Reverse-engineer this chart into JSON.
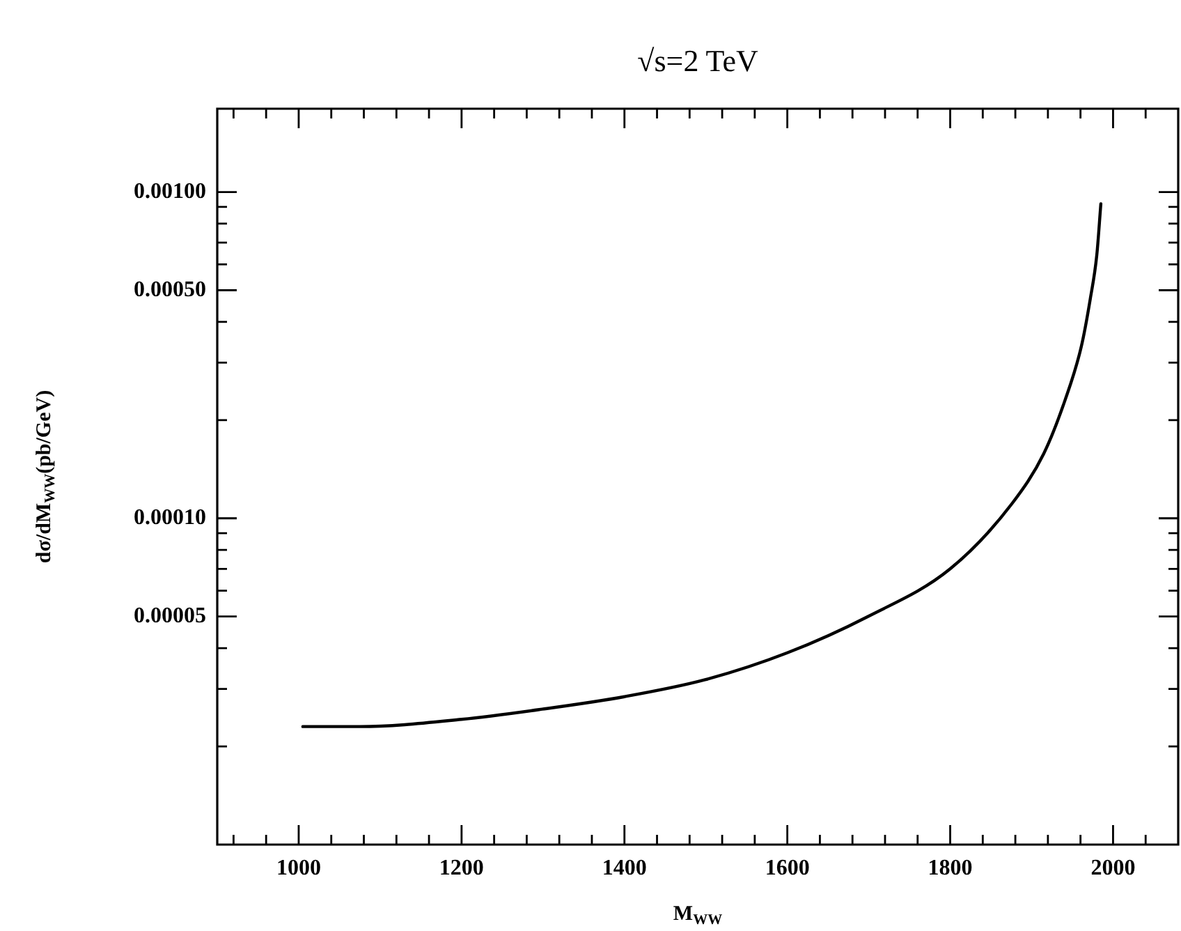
{
  "chart_data": {
    "type": "line",
    "title": "√s=2 TeV",
    "xlabel": "M$_{WW}$",
    "ylabel": "dσ/dM$_{WW}$(pb/GeV)",
    "x": [
      1005,
      1075,
      1200,
      1299,
      1400,
      1499,
      1600,
      1699,
      1800,
      1876,
      1915,
      1941,
      1961,
      1972,
      1980,
      1985
    ],
    "values": [
      2.3e-05,
      2.3e-05,
      2.42e-05,
      2.6e-05,
      2.84e-05,
      3.2e-05,
      3.87e-05,
      5e-05,
      7e-05,
      0.000111,
      0.000158,
      0.00023,
      0.000336,
      0.00047,
      0.00064,
      0.00092
    ],
    "color": "#000000",
    "marker": "none",
    "line_style": "solid",
    "log": "y",
    "xlim": [
      900,
      2080
    ],
    "ylim": [
      1e-05,
      0.0018
    ],
    "xticks": [
      {
        "value": 920,
        "label": null
      },
      {
        "value": 960,
        "label": null
      },
      1000,
      {
        "value": 1040,
        "label": null
      },
      {
        "value": 1080,
        "label": null
      },
      {
        "value": 1120,
        "label": null
      },
      {
        "value": 1160,
        "label": null
      },
      1200,
      {
        "value": 1240,
        "label": null
      },
      {
        "value": 1280,
        "label": null
      },
      {
        "value": 1320,
        "label": null
      },
      {
        "value": 1360,
        "label": null
      },
      1400,
      {
        "value": 1440,
        "label": null
      },
      {
        "value": 1480,
        "label": null
      },
      {
        "value": 1520,
        "label": null
      },
      {
        "value": 1560,
        "label": null
      },
      1600,
      {
        "value": 1640,
        "label": null
      },
      {
        "value": 1680,
        "label": null
      },
      {
        "value": 1720,
        "label": null
      },
      {
        "value": 1760,
        "label": null
      },
      1800,
      {
        "value": 1840,
        "label": null
      },
      {
        "value": 1880,
        "label": null
      },
      {
        "value": 1920,
        "label": null
      },
      {
        "value": 1960,
        "label": null
      },
      2000,
      {
        "value": 2040,
        "label": null
      }
    ],
    "yticks": [
      {
        "value": 2e-05,
        "label": null
      },
      {
        "value": 3e-05,
        "label": null
      },
      {
        "value": 4e-05,
        "label": null
      },
      {
        "value": 5e-05,
        "label": "0.00005"
      },
      {
        "value": 6e-05,
        "label": null
      },
      {
        "value": 7e-05,
        "label": null
      },
      {
        "value": 8e-05,
        "label": null
      },
      {
        "value": 9e-05,
        "label": null
      },
      {
        "value": 0.0001,
        "label": "0.00010"
      },
      {
        "value": 0.0002,
        "label": null
      },
      {
        "value": 0.0003,
        "label": null
      },
      {
        "value": 0.0004,
        "label": null
      },
      {
        "value": 0.0005,
        "label": "0.00050"
      },
      {
        "value": 0.0006,
        "label": null
      },
      {
        "value": 0.0007,
        "label": null
      },
      {
        "value": 0.0008,
        "label": null
      },
      {
        "value": 0.0009,
        "label": null
      },
      {
        "value": 0.001,
        "label": "0.00100"
      }
    ]
  }
}
